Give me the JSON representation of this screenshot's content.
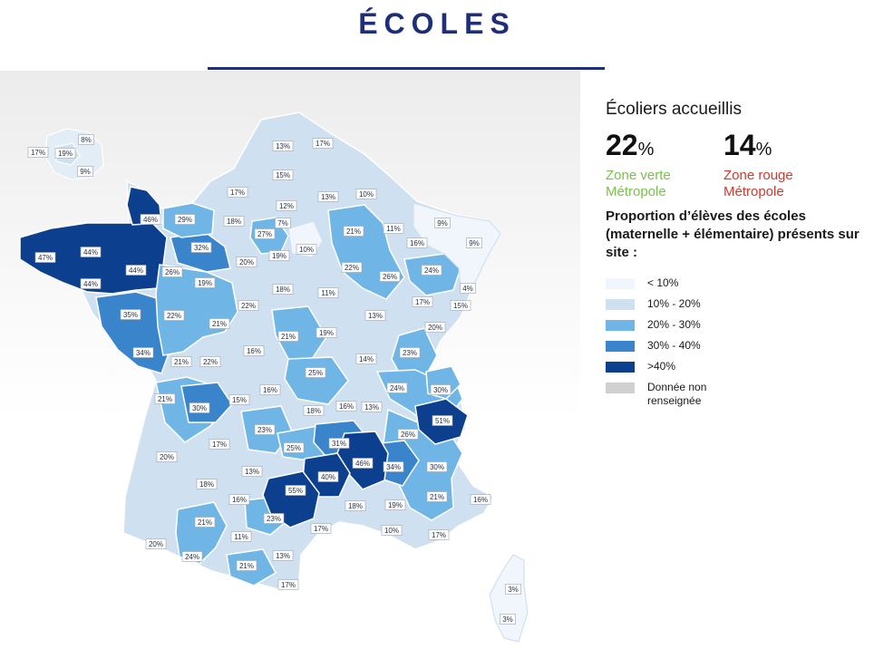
{
  "title": "ÉCOLES",
  "legend": {
    "heading": "Écoliers accueillis",
    "stats": [
      {
        "value": "22",
        "unit": "%",
        "label": "Zone verte Métropole",
        "color": "#79c24a"
      },
      {
        "value": "14",
        "unit": "%",
        "label": "Zone rouge Métropole",
        "color": "#d03a2e"
      }
    ],
    "description": "Proportion d’élèves des écoles (maternelle + élémentaire) présents sur site :",
    "classes": [
      {
        "label": "< 10%",
        "color": "#f1f6fc"
      },
      {
        "label": "10% - 20%",
        "color": "#cfe1f0"
      },
      {
        "label": "20% - 30%",
        "color": "#6fb6e6"
      },
      {
        "label": "30% - 40%",
        "color": "#3a84cc"
      },
      {
        "label": ">40%",
        "color": "#0d3f8f"
      },
      {
        "label": "Donnée non renseignée",
        "color": "#d0d0d0"
      }
    ]
  },
  "departments": [
    {
      "label": "17%",
      "value": 17
    },
    {
      "label": "19%",
      "value": 19
    },
    {
      "label": "8%",
      "value": 8
    },
    {
      "label": "9%",
      "value": 9
    },
    {
      "label": "13%",
      "value": 13
    },
    {
      "label": "17%",
      "value": 17
    },
    {
      "label": "15%",
      "value": 15
    },
    {
      "label": "17%",
      "value": 17
    },
    {
      "label": "12%",
      "value": 12
    },
    {
      "label": "13%",
      "value": 13
    },
    {
      "label": "10%",
      "value": 10
    },
    {
      "label": "46%",
      "value": 46
    },
    {
      "label": "29%",
      "value": 29
    },
    {
      "label": "18%",
      "value": 18
    },
    {
      "label": "7%",
      "value": 7
    },
    {
      "label": "27%",
      "value": 27
    },
    {
      "label": "10%",
      "value": 10
    },
    {
      "label": "21%",
      "value": 21
    },
    {
      "label": "11%",
      "value": 11
    },
    {
      "label": "9%",
      "value": 9
    },
    {
      "label": "16%",
      "value": 16
    },
    {
      "label": "9%",
      "value": 9
    },
    {
      "label": "44%",
      "value": 44
    },
    {
      "label": "47%",
      "value": 47
    },
    {
      "label": "32%",
      "value": 32
    },
    {
      "label": "19%",
      "value": 19
    },
    {
      "label": "20%",
      "value": 20
    },
    {
      "label": "44%",
      "value": 44
    },
    {
      "label": "26%",
      "value": 26
    },
    {
      "label": "22%",
      "value": 22
    },
    {
      "label": "26%",
      "value": 26
    },
    {
      "label": "24%",
      "value": 24
    },
    {
      "label": "44%",
      "value": 44
    },
    {
      "label": "19%",
      "value": 19
    },
    {
      "label": "18%",
      "value": 18
    },
    {
      "label": "11%",
      "value": 11
    },
    {
      "label": "4%",
      "value": 4
    },
    {
      "label": "17%",
      "value": 17
    },
    {
      "label": "15%",
      "value": 15
    },
    {
      "label": "35%",
      "value": 35
    },
    {
      "label": "22%",
      "value": 22
    },
    {
      "label": "22%",
      "value": 22
    },
    {
      "label": "13%",
      "value": 13
    },
    {
      "label": "21%",
      "value": 21
    },
    {
      "label": "21%",
      "value": 21
    },
    {
      "label": "19%",
      "value": 19
    },
    {
      "label": "20%",
      "value": 20
    },
    {
      "label": "34%",
      "value": 34
    },
    {
      "label": "16%",
      "value": 16
    },
    {
      "label": "23%",
      "value": 23
    },
    {
      "label": "21%",
      "value": 21
    },
    {
      "label": "22%",
      "value": 22
    },
    {
      "label": "14%",
      "value": 14
    },
    {
      "label": "25%",
      "value": 25
    },
    {
      "label": "16%",
      "value": 16
    },
    {
      "label": "24%",
      "value": 24
    },
    {
      "label": "30%",
      "value": 30
    },
    {
      "label": "21%",
      "value": 21
    },
    {
      "label": "15%",
      "value": 15
    },
    {
      "label": "30%",
      "value": 30
    },
    {
      "label": "18%",
      "value": 18
    },
    {
      "label": "16%",
      "value": 16
    },
    {
      "label": "13%",
      "value": 13
    },
    {
      "label": "51%",
      "value": 51
    },
    {
      "label": "23%",
      "value": 23
    },
    {
      "label": "17%",
      "value": 17
    },
    {
      "label": "31%",
      "value": 31
    },
    {
      "label": "26%",
      "value": 26
    },
    {
      "label": "25%",
      "value": 25
    },
    {
      "label": "20%",
      "value": 20
    },
    {
      "label": "46%",
      "value": 46
    },
    {
      "label": "34%",
      "value": 34
    },
    {
      "label": "13%",
      "value": 13
    },
    {
      "label": "40%",
      "value": 40
    },
    {
      "label": "30%",
      "value": 30
    },
    {
      "label": "18%",
      "value": 18
    },
    {
      "label": "55%",
      "value": 55
    },
    {
      "label": "16%",
      "value": 16
    },
    {
      "label": "16%",
      "value": 16
    },
    {
      "label": "18%",
      "value": 18
    },
    {
      "label": "19%",
      "value": 19
    },
    {
      "label": "21%",
      "value": 21
    },
    {
      "label": "21%",
      "value": 21
    },
    {
      "label": "23%",
      "value": 23
    },
    {
      "label": "17%",
      "value": 17
    },
    {
      "label": "10%",
      "value": 10
    },
    {
      "label": "20%",
      "value": 20
    },
    {
      "label": "11%",
      "value": 11
    },
    {
      "label": "17%",
      "value": 17
    },
    {
      "label": "24%",
      "value": 24
    },
    {
      "label": "21%",
      "value": 21
    },
    {
      "label": "13%",
      "value": 13
    },
    {
      "label": "17%",
      "value": 17
    },
    {
      "label": "3%",
      "value": 3
    },
    {
      "label": "3%",
      "value": 3
    }
  ]
}
